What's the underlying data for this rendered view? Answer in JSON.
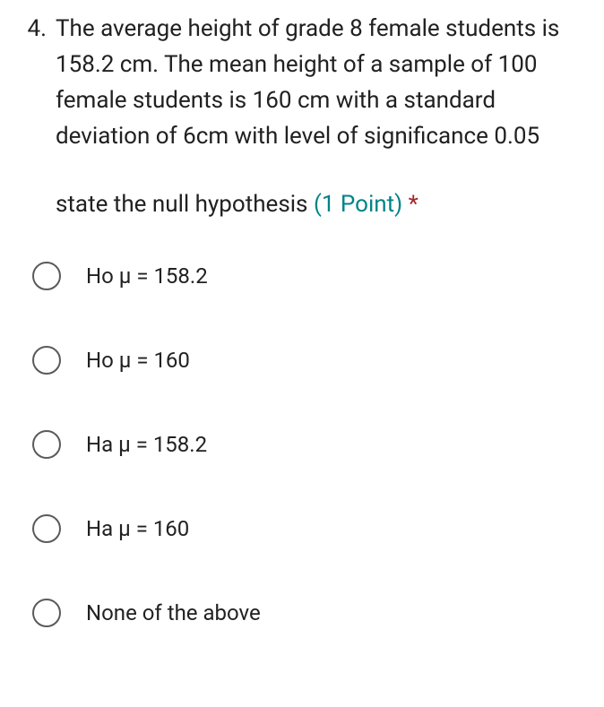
{
  "question": {
    "number": "4.",
    "text": "The average height of grade 8 female students is 158.2 cm. The mean height of a sample of 100 female students is 160 cm with a standard deviation of 6cm with level of significance 0.05",
    "prompt": "state the null hypothesis",
    "points": "(1 Point)",
    "required_mark": "*"
  },
  "options": [
    {
      "label": "Ho μ = 158.2"
    },
    {
      "label": "Ho μ = 160"
    },
    {
      "label": "Ha μ = 158.2"
    },
    {
      "label": "Ha μ = 160"
    },
    {
      "label": "None of the above"
    }
  ],
  "style": {
    "background_color": "#ffffff",
    "text_color": "#212121",
    "points_color": "#038387",
    "required_color": "#a4262c",
    "radio_border_color": "#5a5a5a",
    "question_fontsize": 26,
    "option_fontsize": 24
  }
}
